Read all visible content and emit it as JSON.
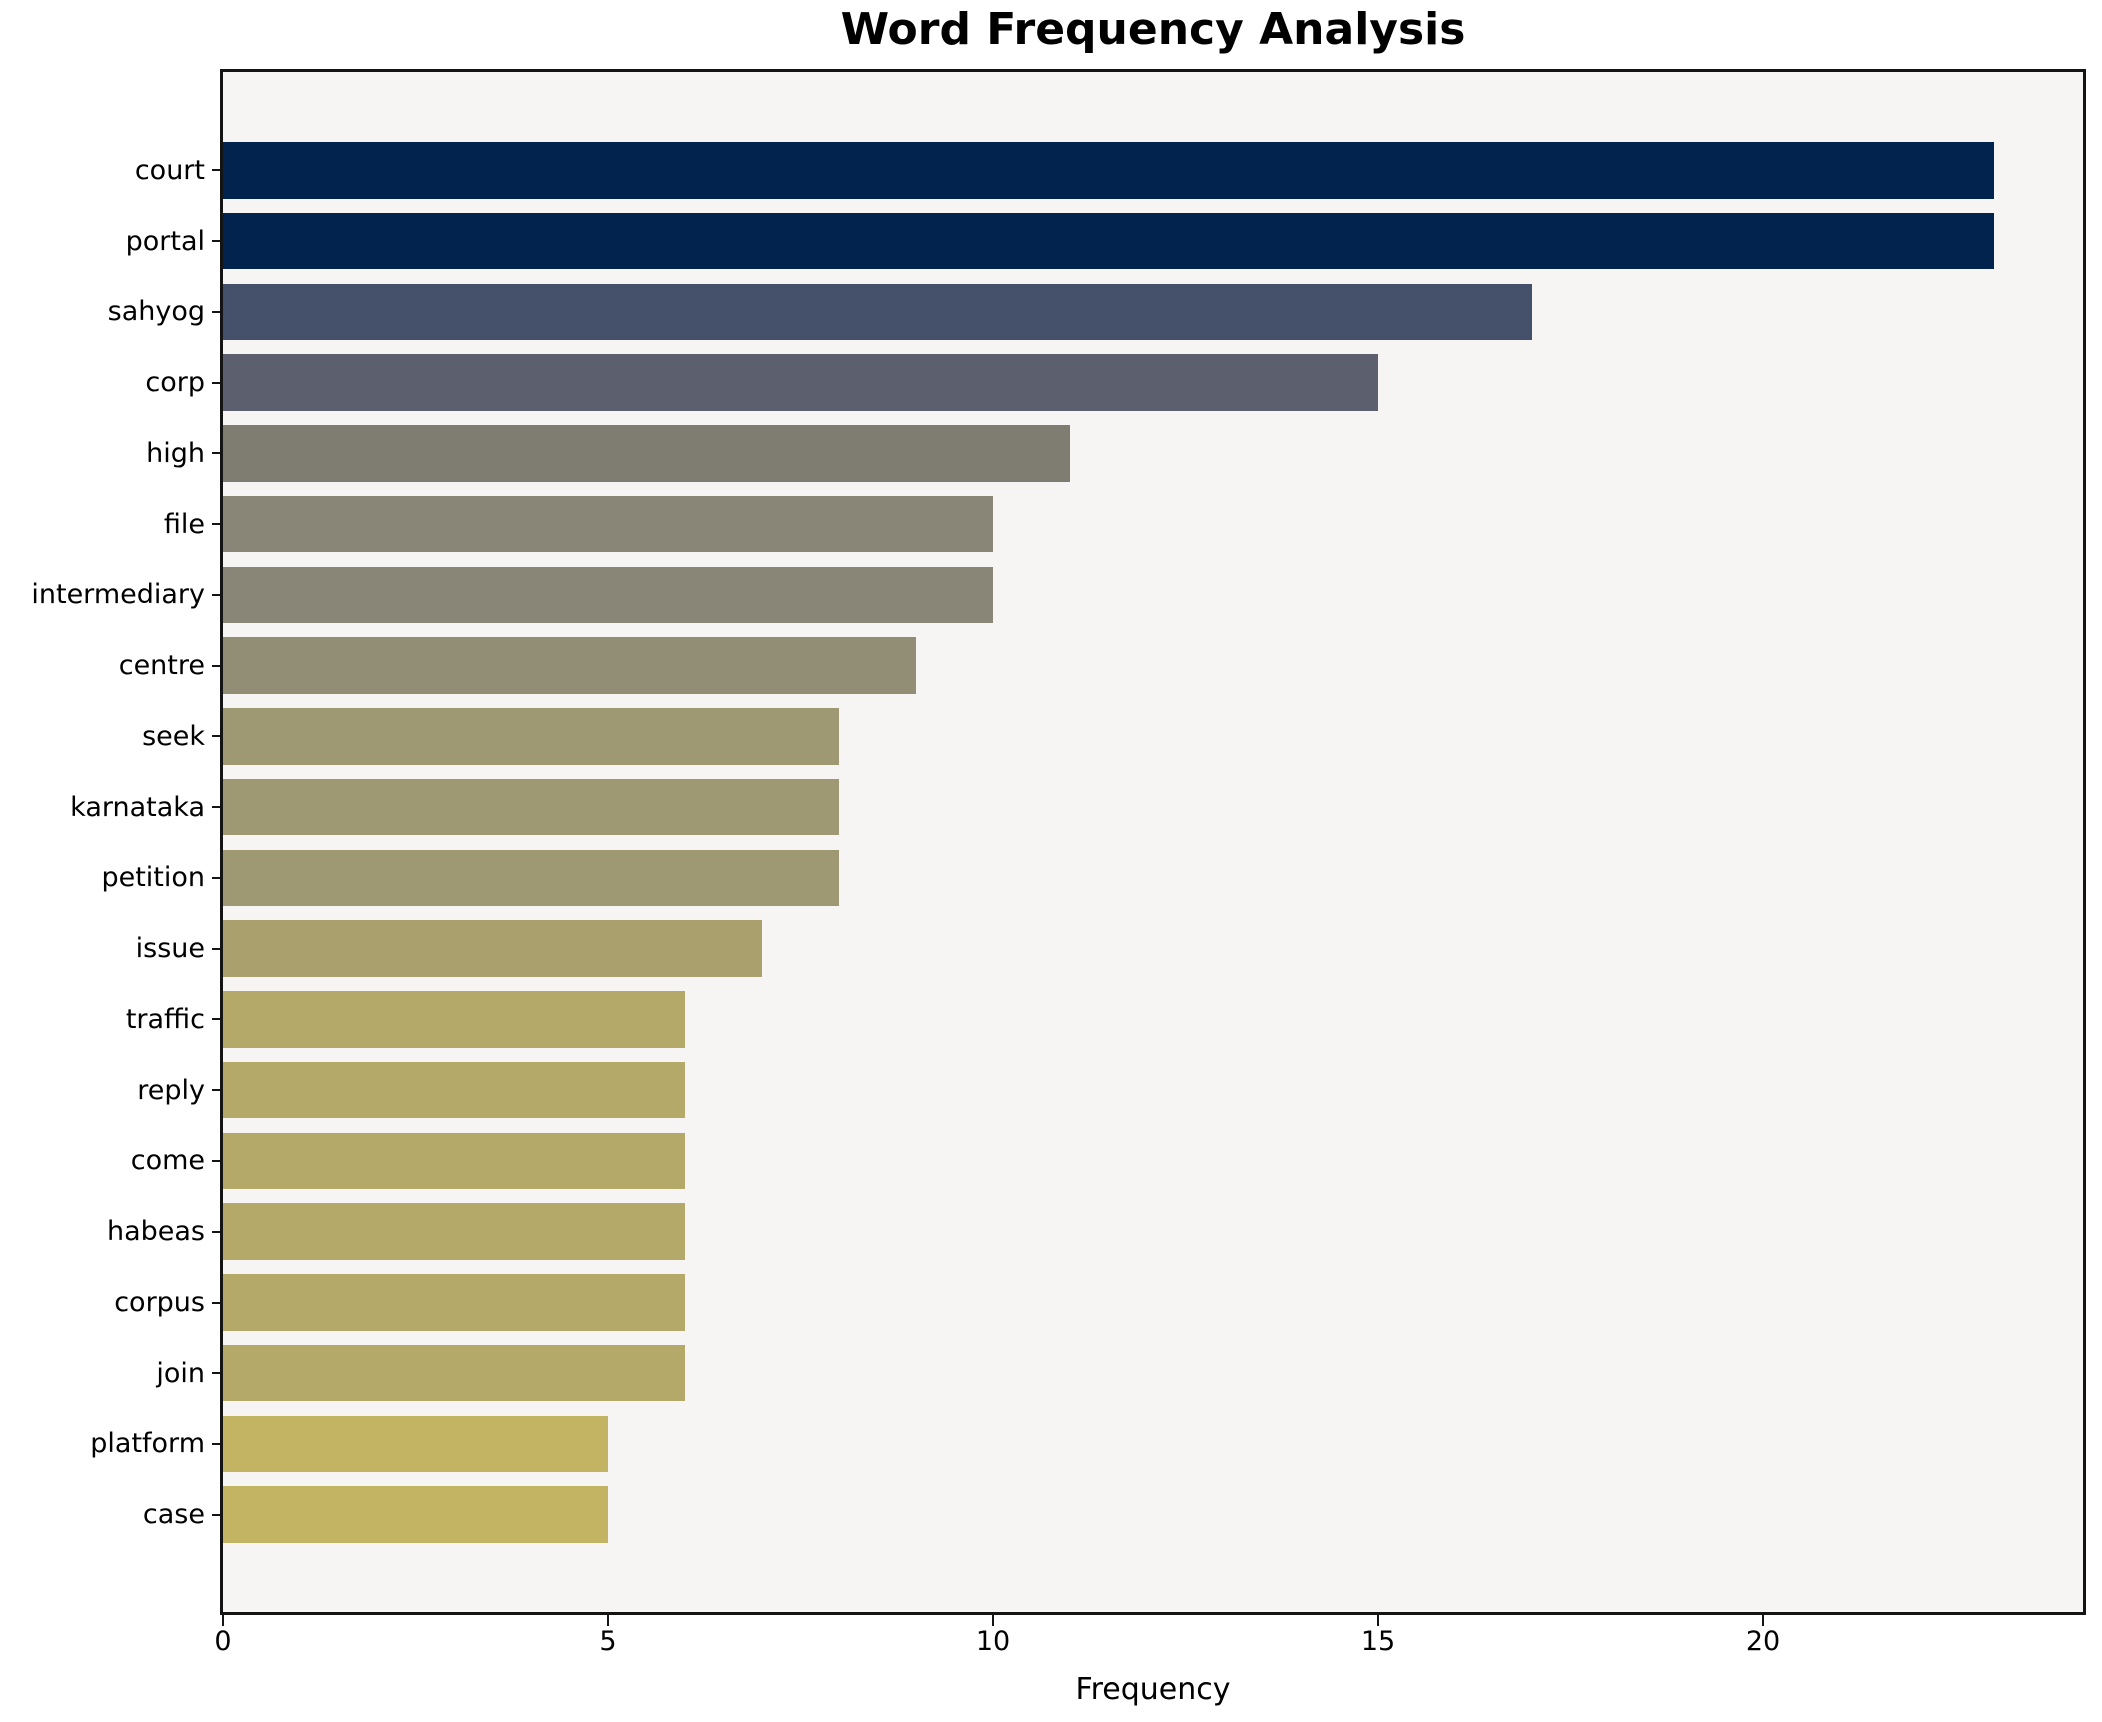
{
  "title": "Word Frequency Analysis",
  "x_axis_label": "Frequency",
  "chart_data": {
    "type": "bar",
    "orientation": "horizontal",
    "title": "Word Frequency Analysis",
    "xlabel": "Frequency",
    "ylabel": "",
    "categories": [
      "court",
      "portal",
      "sahyog",
      "corp",
      "high",
      "file",
      "intermediary",
      "centre",
      "seek",
      "karnataka",
      "petition",
      "issue",
      "traffic",
      "reply",
      "come",
      "habeas",
      "corpus",
      "join",
      "platform",
      "case"
    ],
    "values": [
      23,
      23,
      17,
      15,
      11,
      10,
      10,
      9,
      8,
      8,
      8,
      7,
      6,
      6,
      6,
      6,
      6,
      6,
      5,
      5
    ],
    "bar_colors": [
      "#03234f",
      "#03234f",
      "#45506b",
      "#5c5f6d",
      "#7f7c72",
      "#8a8677",
      "#8a8677",
      "#928d75",
      "#9e9873",
      "#9e9873",
      "#9e9873",
      "#a9a06e",
      "#b4a969",
      "#b4a969",
      "#b4a969",
      "#b4a969",
      "#b4a969",
      "#b4a969",
      "#c3b464",
      "#c3b464"
    ],
    "xlim": [
      0,
      24.16
    ],
    "x_ticks": [
      0,
      5,
      10,
      15,
      20
    ],
    "grid": false,
    "legend": null,
    "plot_background": "#f6f5f3",
    "figure_background": "#ffffff",
    "spine_color": "#141414"
  }
}
